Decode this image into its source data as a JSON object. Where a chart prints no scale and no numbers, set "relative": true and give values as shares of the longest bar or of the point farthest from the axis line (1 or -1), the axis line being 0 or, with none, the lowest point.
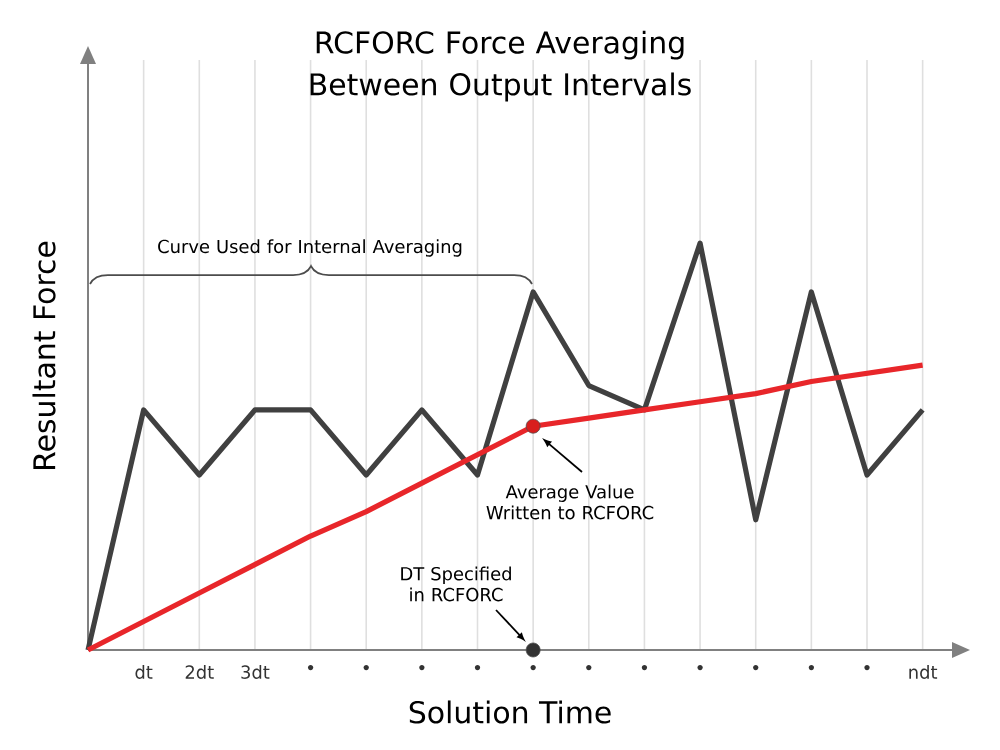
{
  "chart_data": {
    "type": "line",
    "relative": true,
    "title": "RCFORC Force Averaging Between Output Intervals",
    "xlabel": "Solution Time",
    "ylabel": "Resultant Force",
    "categories": [
      null,
      "dt",
      "2dt",
      "3dt",
      "•",
      "•",
      "•",
      "•",
      "•",
      "•",
      "•",
      "•",
      "•",
      "•",
      "•",
      "ndt"
    ],
    "series": [
      {
        "color": "#404040",
        "values": [
          0,
          0.59,
          0.43,
          0.59,
          0.59,
          0.43,
          0.59,
          0.43,
          0.88,
          0.65,
          0.59,
          1,
          0.32,
          0.88,
          0.43,
          0.59
        ]
      },
      {
        "color": "#e8262a",
        "values": [
          0,
          0.07,
          0.14,
          0.21,
          0.28,
          0.34,
          0.41,
          0.48,
          0.55,
          0.57,
          0.59,
          0.61,
          0.63,
          0.66,
          0.68,
          0.7
        ]
      },
      {
        "type": "scatter",
        "marker": "circle",
        "color": "#d81e1e",
        "values": [
          null,
          null,
          null,
          null,
          null,
          null,
          null,
          null,
          0.55,
          null,
          null,
          null,
          null,
          null,
          null,
          null
        ]
      },
      {
        "type": "scatter",
        "marker": "circle",
        "color": "#333333",
        "values": [
          null,
          null,
          null,
          null,
          null,
          null,
          null,
          null,
          0,
          null,
          null,
          null,
          null,
          null,
          null,
          null
        ]
      }
    ],
    "annotations": [
      "Curve Used for Internal Averaging",
      "Average Value Written to RCFORC",
      "DT Specified in RCFORC"
    ],
    "grid": "x",
    "tick_labels": "x"
  }
}
